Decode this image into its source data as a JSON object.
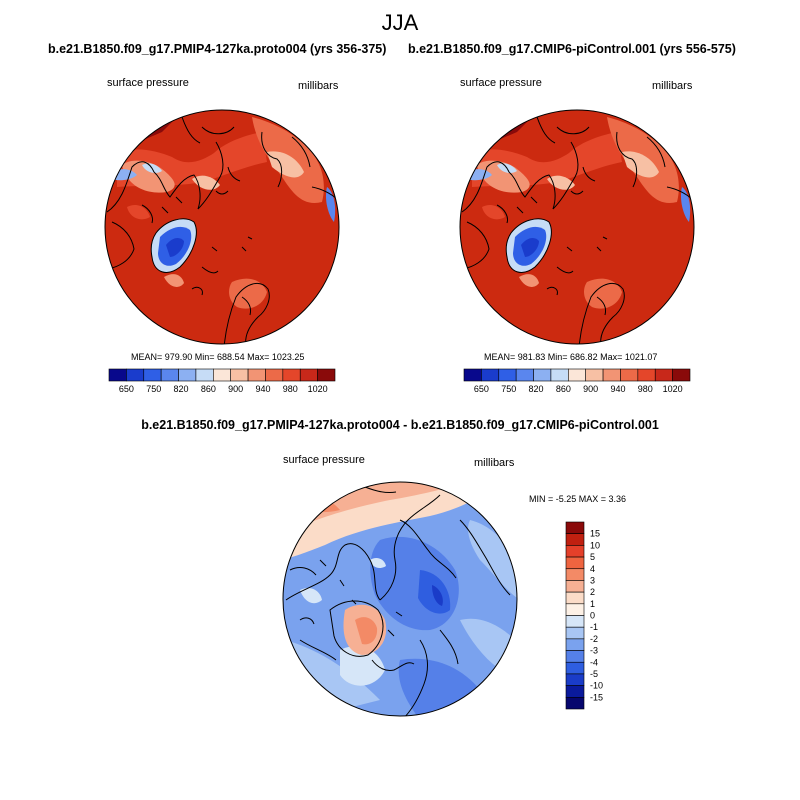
{
  "title": "JJA",
  "panels": [
    {
      "case": "b.e21.B1850.f09_g17.PMIP4-127ka.proto004 (yrs 356-375)",
      "variable": "surface pressure",
      "units": "millibars",
      "stats": "MEAN= 979.90  Min= 688.54  Max= 1023.25"
    },
    {
      "case": "b.e21.B1850.f09_g17.CMIP6-piControl.001 (yrs 556-575)",
      "variable": "surface pressure",
      "units": "millibars",
      "stats": "MEAN= 981.83  Min= 686.82  Max= 1021.07"
    }
  ],
  "diff_panel": {
    "case": "b.e21.B1850.f09_g17.PMIP4-127ka.proto004 - b.e21.B1850.f09_g17.CMIP6-piControl.001",
    "variable": "surface pressure",
    "units": "millibars",
    "stats": "MIN =  -5.25 MAX =   3.36"
  },
  "abs_colorbar": {
    "labels": [
      "650",
      "750",
      "820",
      "860",
      "900",
      "940",
      "980",
      "1020"
    ],
    "colors": [
      "#08088c",
      "#1a3ccc",
      "#2f5fe6",
      "#5a86ee",
      "#8cb0f2",
      "#c6dcf6",
      "#fbe6d8",
      "#f7c0a4",
      "#f29474",
      "#ec6a48",
      "#e4462a",
      "#c8281a",
      "#8a0a0a"
    ]
  },
  "diff_colorbar": {
    "labels": [
      "15",
      "10",
      "5",
      "4",
      "3",
      "2",
      "1",
      "0",
      "-1",
      "-2",
      "-3",
      "-4",
      "-5",
      "-10",
      "-15"
    ],
    "colors": [
      "#8a0a0a",
      "#c02010",
      "#e4402a",
      "#ee6440",
      "#f38a66",
      "#f6b094",
      "#fbdcc8",
      "#fdf1e6",
      "#d6e6f8",
      "#a8c6f4",
      "#7aa2ee",
      "#5580e8",
      "#2f5ee0",
      "#1a3cc8",
      "#0a1a9c",
      "#06066e"
    ]
  }
}
